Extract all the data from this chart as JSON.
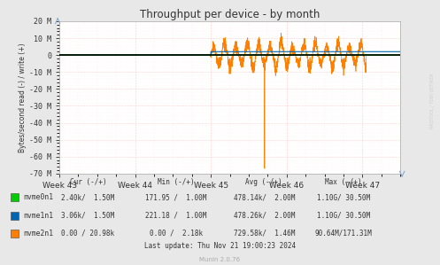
{
  "title": "Throughput per device - by month",
  "ylabel": "Bytes/second read (-) / write (+)",
  "xlabel_ticks": [
    "Week 43",
    "Week 44",
    "Week 45",
    "Week 46",
    "Week 47"
  ],
  "ylim": [
    -70000000,
    20000000
  ],
  "yticks": [
    -70000000,
    -60000000,
    -50000000,
    -40000000,
    -30000000,
    -20000000,
    -10000000,
    0,
    10000000,
    20000000
  ],
  "ytick_labels": [
    "-70 M",
    "-60 M",
    "-50 M",
    "-40 M",
    "-30 M",
    "-20 M",
    "-10 M",
    "0",
    "10 M",
    "20 M"
  ],
  "bg_color": "#e8e8e8",
  "plot_bg_color": "#ffffff",
  "grid_color_major": "#ff9999",
  "grid_color_minor": "#ffdddd",
  "title_color": "#333333",
  "watermark": "Munin 2.0.76",
  "rrdtool_label": "RRDTOOL / TOBI OETIKER",
  "legend": [
    {
      "label": "nvme0n1",
      "color": "#00cc00"
    },
    {
      "label": "nvme1n1",
      "color": "#0066b3"
    },
    {
      "label": "nvme2n1",
      "color": "#ff7f00"
    }
  ],
  "table_header": "Cur (-/+)        Min (-/+)        Avg (-/+)       Max (-/+)",
  "table_rows": [
    [
      "2.40k/  1.50M",
      "171.95 /  1.00M",
      "478.14k/  2.00M",
      "1.10G/ 30.50M"
    ],
    [
      "3.06k/  1.50M",
      "221.18 /  1.00M",
      "478.26k/  2.00M",
      "1.10G/ 30.50M"
    ],
    [
      "0.00 / 20.98k",
      "0.00 /  2.18k",
      "729.58k/  1.46M",
      "90.64M/171.31M"
    ]
  ],
  "last_update": "Last update: Thu Nov 21 19:00:23 2024",
  "total_hours": 756,
  "week_positions": [
    0,
    168,
    336,
    504,
    672
  ],
  "nvme0n1_color": "#00cc00",
  "nvme1n1_color": "#0066b3",
  "nvme2n1_color": "#ff7f00"
}
